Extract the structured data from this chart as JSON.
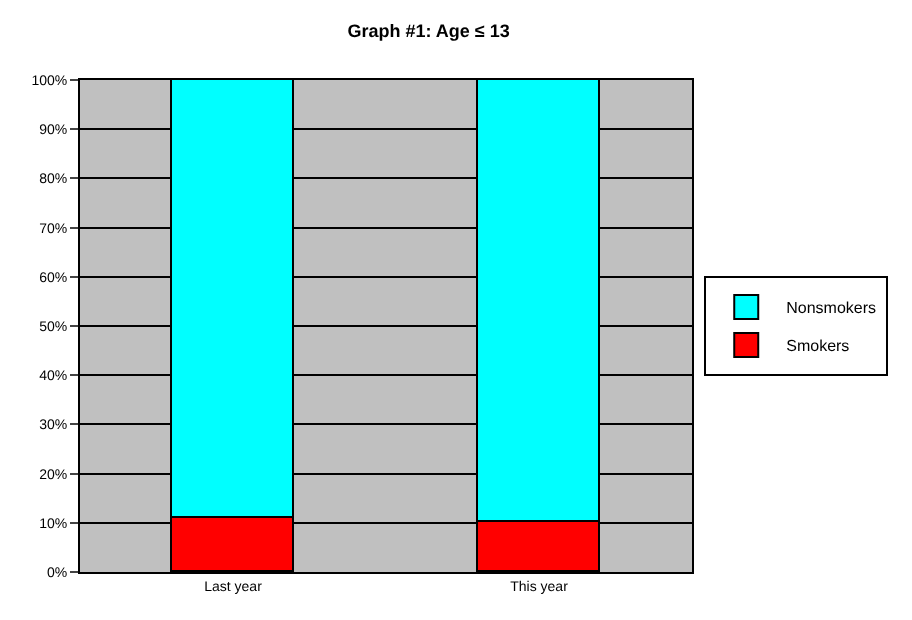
{
  "chart_data": {
    "type": "bar",
    "title": "Graph #1: Age ≤ 13",
    "categories": [
      "Last year",
      "This year"
    ],
    "stacked": true,
    "series": [
      {
        "name": "Smokers",
        "color": "#ff0000",
        "values": [
          11,
          10
        ]
      },
      {
        "name": "Nonsmokers",
        "color": "#00ffff",
        "values": [
          89,
          90
        ]
      }
    ],
    "ylim": [
      0,
      100
    ],
    "yticks": [
      {
        "value": 0,
        "label": "0%"
      },
      {
        "value": 10,
        "label": "10%"
      },
      {
        "value": 20,
        "label": "20%"
      },
      {
        "value": 30,
        "label": "30%"
      },
      {
        "value": 40,
        "label": "40%"
      },
      {
        "value": 50,
        "label": "50%"
      },
      {
        "value": 60,
        "label": "60%"
      },
      {
        "value": 70,
        "label": "70%"
      },
      {
        "value": 80,
        "label": "80%"
      },
      {
        "value": 90,
        "label": "90%"
      },
      {
        "value": 100,
        "label": "100%"
      }
    ],
    "grid": "y",
    "legend": "right"
  }
}
